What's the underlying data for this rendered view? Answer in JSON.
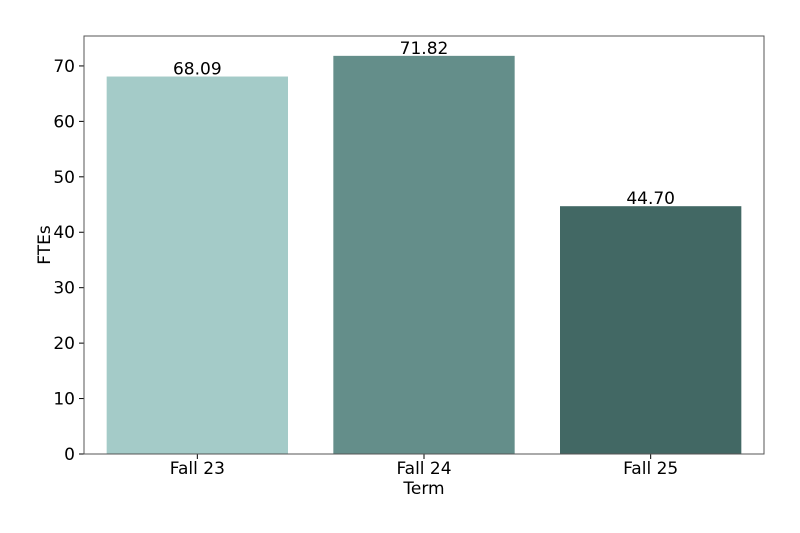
{
  "chart_data": {
    "type": "bar",
    "x_label": "Term",
    "y_label": "FTEs",
    "categories": [
      "Fall 23",
      "Fall 24",
      "Fall 25"
    ],
    "values": [
      68.09,
      71.82,
      44.7
    ],
    "value_labels": [
      "68.09",
      "71.82",
      "44.70"
    ],
    "colors": [
      "#a4cbc8",
      "#648e8a",
      "#426864"
    ],
    "ylim": [
      0,
      75.4
    ],
    "yticks": [
      0,
      10,
      20,
      30,
      40,
      50,
      60,
      70
    ],
    "grid": false
  }
}
